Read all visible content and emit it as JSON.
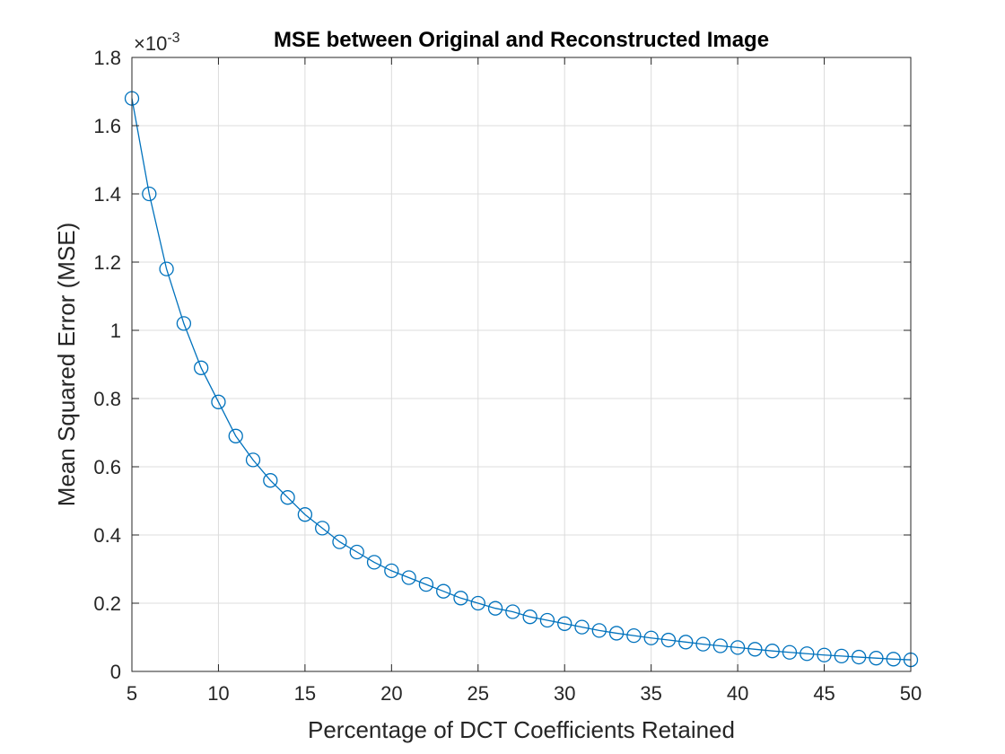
{
  "chart_data": {
    "type": "line",
    "title": "MSE between Original and Reconstructed Image",
    "xlabel": "Percentage of DCT Coefficients Retained",
    "ylabel": "Mean Squared Error (MSE)",
    "y_exponent_label": "×10",
    "y_exponent_power": "-3",
    "xlim": [
      5,
      50
    ],
    "ylim": [
      0,
      1.8
    ],
    "xticks": [
      5,
      10,
      15,
      20,
      25,
      30,
      35,
      40,
      45,
      50
    ],
    "xtick_labels": [
      "5",
      "10",
      "15",
      "20",
      "25",
      "30",
      "35",
      "40",
      "45",
      "50"
    ],
    "yticks": [
      0,
      0.2,
      0.4,
      0.6,
      0.8,
      1,
      1.2,
      1.4,
      1.6,
      1.8
    ],
    "ytick_labels": [
      "0",
      "0.2",
      "0.4",
      "0.6",
      "0.8",
      "1",
      "1.2",
      "1.4",
      "1.6",
      "1.8"
    ],
    "grid": true,
    "marker": "circle",
    "color": "#0072bd",
    "series": [
      {
        "x": [
          5,
          6,
          7,
          8,
          9,
          10,
          11,
          12,
          13,
          14,
          15,
          16,
          17,
          18,
          19,
          20,
          21,
          22,
          23,
          24,
          25,
          26,
          27,
          28,
          29,
          30,
          31,
          32,
          33,
          34,
          35,
          36,
          37,
          38,
          39,
          40,
          41,
          42,
          43,
          44,
          45,
          46,
          47,
          48,
          49,
          50
        ],
        "y": [
          1.68,
          1.4,
          1.18,
          1.02,
          0.89,
          0.79,
          0.69,
          0.62,
          0.56,
          0.51,
          0.46,
          0.42,
          0.38,
          0.35,
          0.32,
          0.295,
          0.275,
          0.255,
          0.235,
          0.215,
          0.2,
          0.185,
          0.175,
          0.16,
          0.15,
          0.14,
          0.13,
          0.12,
          0.112,
          0.105,
          0.098,
          0.092,
          0.086,
          0.08,
          0.075,
          0.07,
          0.065,
          0.06,
          0.056,
          0.052,
          0.048,
          0.045,
          0.042,
          0.039,
          0.036,
          0.034
        ]
      }
    ]
  }
}
